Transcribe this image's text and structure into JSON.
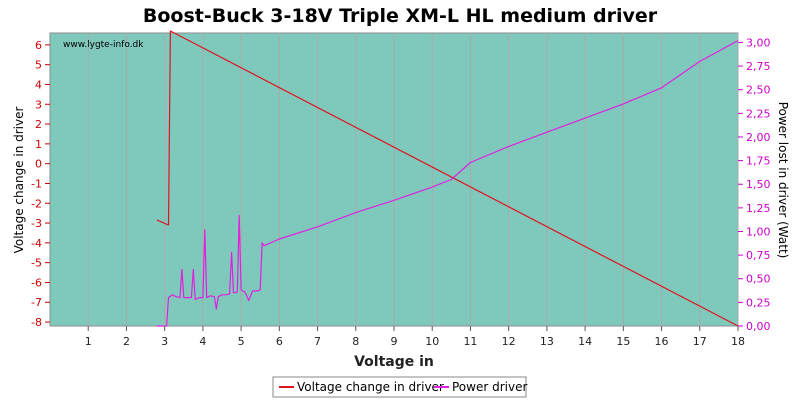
{
  "chart_data": {
    "type": "line",
    "title": "Boost-Buck 3-18V Triple XM-L HL medium driver",
    "xlabel": "Voltage in",
    "ylabel_left": "Voltage change in driver",
    "ylabel_right": "Power lost in driver (Watt)",
    "watermark": "www.lygte-info.dk",
    "xlim": [
      0,
      18
    ],
    "x_ticks": [
      1,
      2,
      3,
      4,
      5,
      6,
      7,
      8,
      9,
      10,
      11,
      12,
      13,
      14,
      15,
      16,
      17,
      18
    ],
    "ylim_left": [
      -8.2,
      6.6
    ],
    "y_ticks_left": [
      -8,
      -7,
      -6,
      -5,
      -4,
      -3,
      -2,
      -1,
      0,
      1,
      2,
      3,
      4,
      5,
      6
    ],
    "ylim_right": [
      0,
      3.1
    ],
    "y_ticks_right_labels": [
      "0,00",
      "0,25",
      "0,50",
      "0,75",
      "1,00",
      "1,25",
      "1,50",
      "1,75",
      "2,00",
      "2,25",
      "2,50",
      "2,75",
      "3,00"
    ],
    "colors": {
      "plot_bg": "#7fc8bc",
      "voltage": "#e0141e",
      "power": "#e020e0",
      "left_axis": "#cc0000",
      "right_axis": "#cc00cc"
    },
    "series": [
      {
        "name": "Voltage change in driver",
        "axis": "left",
        "x": [
          2.8,
          3.1,
          3.15,
          18.0
        ],
        "y": [
          -2.85,
          -3.1,
          6.7,
          -8.2
        ]
      },
      {
        "name": "Power driver",
        "axis": "right",
        "x": [
          2.8,
          3.05,
          3.1,
          3.2,
          3.3,
          3.4,
          3.45,
          3.5,
          3.6,
          3.7,
          3.75,
          3.8,
          3.9,
          4.0,
          4.05,
          4.1,
          4.2,
          4.3,
          4.35,
          4.4,
          4.5,
          4.6,
          4.7,
          4.75,
          4.8,
          4.9,
          4.95,
          5.0,
          5.1,
          5.2,
          5.3,
          5.4,
          5.5,
          5.55,
          5.6,
          6,
          7,
          8,
          9,
          10,
          10.5,
          11,
          12,
          13,
          14,
          15,
          16,
          17,
          18
        ],
        "y": [
          0.0,
          0.0,
          0.3,
          0.33,
          0.31,
          0.3,
          0.6,
          0.3,
          0.3,
          0.3,
          0.6,
          0.28,
          0.3,
          0.3,
          1.02,
          0.3,
          0.32,
          0.31,
          0.18,
          0.31,
          0.33,
          0.33,
          0.34,
          0.78,
          0.35,
          0.36,
          1.17,
          0.38,
          0.36,
          0.27,
          0.37,
          0.37,
          0.38,
          0.88,
          0.85,
          0.92,
          1.05,
          1.2,
          1.33,
          1.47,
          1.55,
          1.73,
          1.9,
          2.05,
          2.2,
          2.35,
          2.52,
          2.8,
          3.02
        ]
      }
    ],
    "legend": {
      "placement": "bottom-center"
    }
  }
}
